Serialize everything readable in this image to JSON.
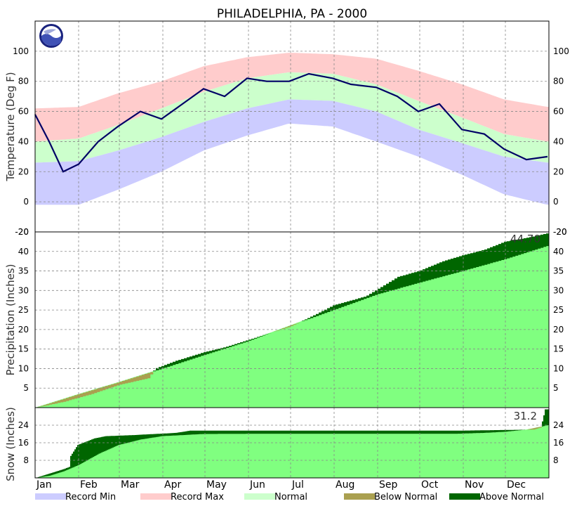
{
  "chart_data": {
    "type": "climate-summary",
    "title": "PHILADELPHIA, PA - 2000",
    "months": [
      "Jan",
      "Feb",
      "Mar",
      "Apr",
      "May",
      "Jun",
      "Jul",
      "Aug",
      "Sep",
      "Oct",
      "Nov",
      "Dec"
    ],
    "colors": {
      "record_min": "#ccccff",
      "record_max": "#ffcccc",
      "normal": "#ccffcc",
      "actual_temp": "#000066",
      "precip_fill": "#80ff80",
      "below_normal": "#aaa050",
      "above_normal": "#006600"
    },
    "legend": [
      "Record Min",
      "Record Max",
      "Normal",
      "Below Normal",
      "Above Normal"
    ],
    "temperature": {
      "ylabel": "Temperature (Deg F)",
      "ylim": [
        -20,
        120
      ],
      "ticks": [
        "-20",
        "0",
        "20",
        "40",
        "60",
        "80",
        "100"
      ],
      "record_max_approx": [
        [
          0,
          62
        ],
        [
          31,
          63
        ],
        [
          59,
          72
        ],
        [
          90,
          80
        ],
        [
          120,
          90
        ],
        [
          151,
          96
        ],
        [
          181,
          99
        ],
        [
          212,
          98
        ],
        [
          243,
          95
        ],
        [
          273,
          87
        ],
        [
          304,
          78
        ],
        [
          334,
          68
        ],
        [
          365,
          63
        ]
      ],
      "normal_high": [
        [
          0,
          40
        ],
        [
          31,
          42
        ],
        [
          59,
          51
        ],
        [
          90,
          62
        ],
        [
          120,
          73
        ],
        [
          151,
          82
        ],
        [
          181,
          86
        ],
        [
          212,
          85
        ],
        [
          243,
          78
        ],
        [
          273,
          67
        ],
        [
          304,
          56
        ],
        [
          334,
          45
        ],
        [
          365,
          40
        ]
      ],
      "normal_low": [
        [
          0,
          26
        ],
        [
          31,
          27
        ],
        [
          59,
          34
        ],
        [
          90,
          43
        ],
        [
          120,
          53
        ],
        [
          151,
          62
        ],
        [
          181,
          68
        ],
        [
          212,
          67
        ],
        [
          243,
          60
        ],
        [
          273,
          48
        ],
        [
          304,
          39
        ],
        [
          334,
          30
        ],
        [
          365,
          26
        ]
      ],
      "record_min_approx": [
        [
          0,
          -2
        ],
        [
          31,
          -2
        ],
        [
          59,
          8
        ],
        [
          90,
          20
        ],
        [
          120,
          34
        ],
        [
          151,
          44
        ],
        [
          181,
          52
        ],
        [
          212,
          50
        ],
        [
          243,
          40
        ],
        [
          273,
          30
        ],
        [
          304,
          18
        ],
        [
          334,
          5
        ],
        [
          365,
          -2
        ]
      ],
      "actual_2000_approx": [
        [
          0,
          58
        ],
        [
          10,
          40
        ],
        [
          20,
          20
        ],
        [
          31,
          25
        ],
        [
          45,
          40
        ],
        [
          59,
          50
        ],
        [
          75,
          60
        ],
        [
          90,
          55
        ],
        [
          105,
          65
        ],
        [
          120,
          75
        ],
        [
          135,
          70
        ],
        [
          151,
          82
        ],
        [
          165,
          80
        ],
        [
          181,
          80
        ],
        [
          195,
          85
        ],
        [
          212,
          82
        ],
        [
          225,
          78
        ],
        [
          243,
          76
        ],
        [
          258,
          70
        ],
        [
          273,
          60
        ],
        [
          288,
          65
        ],
        [
          304,
          48
        ],
        [
          320,
          45
        ],
        [
          334,
          35
        ],
        [
          350,
          28
        ],
        [
          365,
          30
        ]
      ]
    },
    "precipitation": {
      "ylabel": "Precipitation (Inches)",
      "ylim": [
        0,
        45
      ],
      "ticks": [
        "5",
        "10",
        "15",
        "20",
        "25",
        "30",
        "35",
        "40"
      ],
      "total_label": "44.70",
      "normal_cumulative": [
        [
          0,
          0
        ],
        [
          31,
          3.5
        ],
        [
          59,
          6.5
        ],
        [
          90,
          10
        ],
        [
          120,
          13.5
        ],
        [
          151,
          17
        ],
        [
          181,
          21
        ],
        [
          212,
          25
        ],
        [
          243,
          29
        ],
        [
          273,
          32
        ],
        [
          304,
          35
        ],
        [
          334,
          38
        ],
        [
          365,
          41.5
        ]
      ],
      "actual_cumulative_approx": [
        [
          0,
          0
        ],
        [
          20,
          1.5
        ],
        [
          40,
          3.5
        ],
        [
          59,
          5.8
        ],
        [
          80,
          7.5
        ],
        [
          85,
          10
        ],
        [
          100,
          12
        ],
        [
          120,
          14.2
        ],
        [
          135,
          15.5
        ],
        [
          151,
          17.3
        ],
        [
          170,
          19.5
        ],
        [
          181,
          20.7
        ],
        [
          200,
          24
        ],
        [
          212,
          26.2
        ],
        [
          235,
          28.5
        ],
        [
          258,
          33.5
        ],
        [
          273,
          35
        ],
        [
          290,
          37.5
        ],
        [
          304,
          39
        ],
        [
          320,
          40.5
        ],
        [
          334,
          42.5
        ],
        [
          350,
          43.5
        ],
        [
          365,
          44.7
        ]
      ]
    },
    "snow": {
      "ylabel": "Snow (Inches)",
      "ylim": [
        0,
        32
      ],
      "ticks": [
        "8",
        "16",
        "24"
      ],
      "total_label": "31.2",
      "normal_cumulative": [
        [
          0,
          0
        ],
        [
          10,
          1
        ],
        [
          20,
          3
        ],
        [
          31,
          6
        ],
        [
          45,
          11
        ],
        [
          59,
          15
        ],
        [
          75,
          17.5
        ],
        [
          90,
          19
        ],
        [
          120,
          20
        ],
        [
          181,
          20.1
        ],
        [
          300,
          20.1
        ],
        [
          320,
          20.5
        ],
        [
          334,
          21
        ],
        [
          350,
          22
        ],
        [
          365,
          24
        ]
      ],
      "actual_cumulative_approx": [
        [
          0,
          0
        ],
        [
          20,
          4
        ],
        [
          24,
          5
        ],
        [
          25,
          10
        ],
        [
          30,
          15
        ],
        [
          42,
          18
        ],
        [
          50,
          19
        ],
        [
          70,
          19.5
        ],
        [
          100,
          20.5
        ],
        [
          110,
          21.5
        ],
        [
          300,
          21.5
        ],
        [
          355,
          22
        ],
        [
          360,
          23
        ],
        [
          363,
          31.2
        ],
        [
          365,
          31.2
        ]
      ]
    }
  }
}
